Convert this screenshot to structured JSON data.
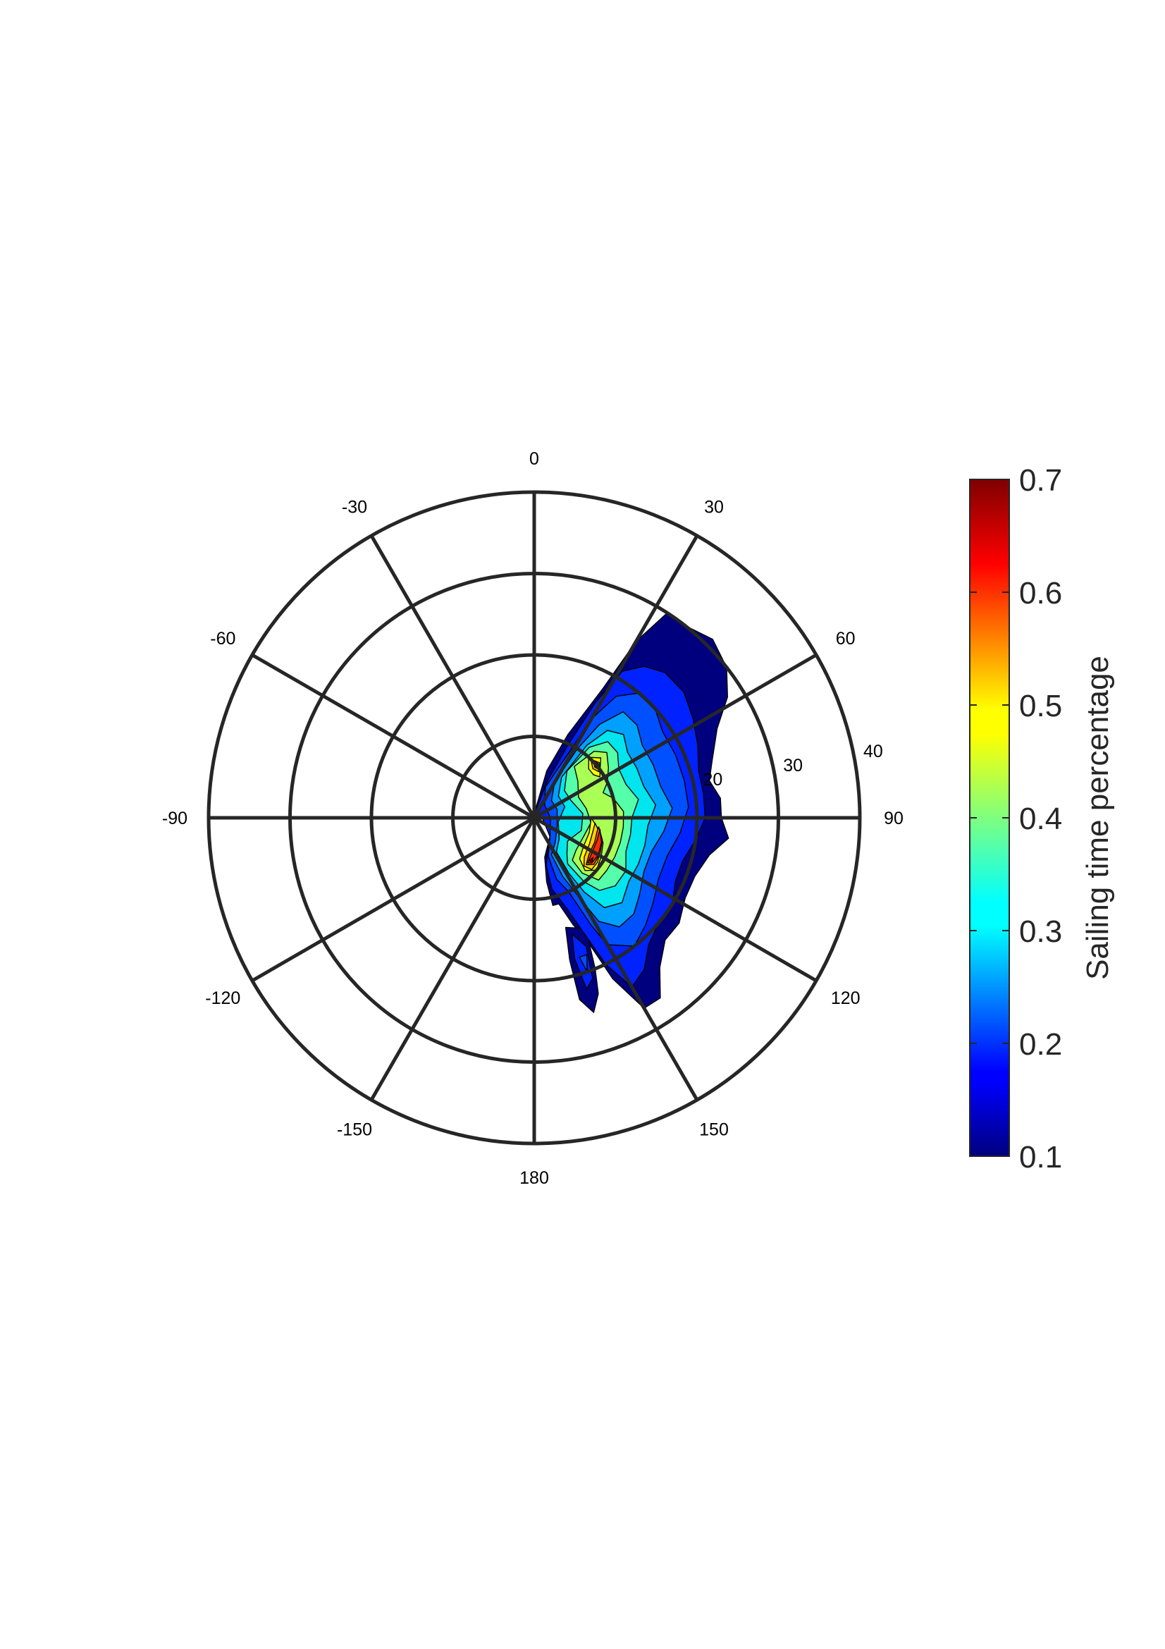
{
  "chart_data": {
    "type": "polar contour",
    "angular_axis": {
      "zero_location": "top",
      "direction": "clockwise",
      "tick_values": [
        0,
        30,
        60,
        90,
        120,
        150,
        180,
        -150,
        -120,
        -90,
        -60,
        -30
      ],
      "tick_labels": [
        "0",
        "30",
        "60",
        "90",
        "120",
        "150",
        "180",
        "-150",
        "-120",
        "-90",
        "-60",
        "-30"
      ]
    },
    "radial_axis": {
      "rlim": [
        0,
        40
      ],
      "rings": [
        10,
        20,
        30,
        40
      ],
      "tick_labels": [
        "20",
        "30",
        "40"
      ],
      "label_angle": 80
    },
    "contour_levels": [
      0.1,
      0.15,
      0.2,
      0.25,
      0.3,
      0.35,
      0.4,
      0.45,
      0.5,
      0.55,
      0.6,
      0.65
    ],
    "contours": [
      {
        "level": 0.1,
        "color": "#00007F",
        "polygon": [
          [
            0,
            0.5
          ],
          [
            15,
            6
          ],
          [
            22,
            11
          ],
          [
            28,
            18
          ],
          [
            30,
            25
          ],
          [
            33,
            30
          ],
          [
            38,
            30
          ],
          [
            45,
            31
          ],
          [
            52,
            30
          ],
          [
            58,
            28
          ],
          [
            64,
            25
          ],
          [
            72,
            23
          ],
          [
            78,
            22
          ],
          [
            84,
            23
          ],
          [
            90,
            23
          ],
          [
            96,
            24
          ],
          [
            102,
            22
          ],
          [
            110,
            21
          ],
          [
            118,
            21
          ],
          [
            126,
            22
          ],
          [
            133,
            22
          ],
          [
            140,
            24
          ],
          [
            145,
            27
          ],
          [
            150,
            27
          ],
          [
            154,
            22
          ],
          [
            157,
            16
          ],
          [
            160,
            14
          ],
          [
            164,
            11
          ],
          [
            168,
            11
          ],
          [
            169,
            8
          ],
          [
            165,
            5
          ],
          [
            140,
            3
          ],
          [
            90,
            1
          ],
          [
            40,
            1
          ]
        ]
      },
      {
        "level": 0.1,
        "color": "#00007F",
        "polygon": [
          [
            155,
            15
          ],
          [
            158,
            20
          ],
          [
            160,
            23
          ],
          [
            163,
            25
          ],
          [
            166,
            23
          ],
          [
            166,
            18
          ],
          [
            164,
            14
          ]
        ]
      },
      {
        "level": 0.15,
        "color": "#0022FF",
        "polygon": [
          [
            0,
            0.5
          ],
          [
            20,
            5
          ],
          [
            25,
            10
          ],
          [
            28,
            16
          ],
          [
            31,
            21
          ],
          [
            36,
            23
          ],
          [
            42,
            24
          ],
          [
            50,
            24
          ],
          [
            58,
            23
          ],
          [
            66,
            22
          ],
          [
            74,
            21
          ],
          [
            82,
            21
          ],
          [
            90,
            21
          ],
          [
            98,
            20
          ],
          [
            106,
            19
          ],
          [
            114,
            19
          ],
          [
            122,
            20
          ],
          [
            130,
            20
          ],
          [
            138,
            21
          ],
          [
            144,
            23
          ],
          [
            150,
            24
          ],
          [
            154,
            20
          ],
          [
            157,
            15
          ],
          [
            160,
            12
          ],
          [
            166,
            9
          ],
          [
            166,
            6
          ],
          [
            140,
            3
          ],
          [
            90,
            1
          ]
        ]
      },
      {
        "level": 0.15,
        "color": "#0022FF",
        "polygon": [
          [
            158,
            17
          ],
          [
            160,
            21
          ],
          [
            163,
            22
          ],
          [
            164,
            18
          ],
          [
            162,
            15
          ]
        ]
      },
      {
        "level": 0.2,
        "color": "#0050FF",
        "polygon": [
          [
            20,
            4
          ],
          [
            28,
            9
          ],
          [
            30,
            14
          ],
          [
            34,
            18
          ],
          [
            40,
            20
          ],
          [
            48,
            20
          ],
          [
            56,
            19
          ],
          [
            66,
            19
          ],
          [
            76,
            19
          ],
          [
            86,
            19
          ],
          [
            96,
            18
          ],
          [
            106,
            17
          ],
          [
            116,
            17
          ],
          [
            126,
            18
          ],
          [
            134,
            19
          ],
          [
            142,
            20
          ],
          [
            150,
            18
          ],
          [
            152,
            15
          ],
          [
            155,
            10
          ],
          [
            160,
            8
          ],
          [
            160,
            5
          ],
          [
            140,
            3
          ],
          [
            90,
            2
          ],
          [
            40,
            2
          ]
        ]
      },
      {
        "level": 0.2,
        "color": "#0050FF",
        "polygon": [
          [
            159,
            18
          ],
          [
            161,
            20
          ],
          [
            162,
            18
          ]
        ]
      },
      {
        "level": 0.25,
        "color": "#00A0FF",
        "polygon": [
          [
            30,
            5
          ],
          [
            32,
            10
          ],
          [
            35,
            14
          ],
          [
            40,
            17
          ],
          [
            48,
            17
          ],
          [
            56,
            16
          ],
          [
            66,
            16
          ],
          [
            76,
            16
          ],
          [
            86,
            17
          ],
          [
            96,
            16
          ],
          [
            106,
            15
          ],
          [
            116,
            15
          ],
          [
            126,
            16
          ],
          [
            134,
            17
          ],
          [
            142,
            17
          ],
          [
            148,
            15
          ],
          [
            150,
            12
          ],
          [
            154,
            8
          ],
          [
            155,
            5
          ],
          [
            140,
            4
          ],
          [
            110,
            3
          ],
          [
            70,
            3
          ],
          [
            45,
            3
          ]
        ]
      },
      {
        "level": 0.3,
        "color": "#00E5EE",
        "polygon": [
          [
            34,
            6
          ],
          [
            36,
            11
          ],
          [
            40,
            14
          ],
          [
            47,
            15
          ],
          [
            55,
            14
          ],
          [
            64,
            14
          ],
          [
            74,
            14
          ],
          [
            84,
            15
          ],
          [
            94,
            14
          ],
          [
            104,
            14
          ],
          [
            114,
            14
          ],
          [
            124,
            14
          ],
          [
            134,
            15
          ],
          [
            142,
            14
          ],
          [
            146,
            11
          ],
          [
            148,
            8
          ],
          [
            147,
            5
          ],
          [
            130,
            4
          ],
          [
            100,
            3
          ],
          [
            70,
            4
          ],
          [
            48,
            4
          ]
        ]
      },
      {
        "level": 0.35,
        "color": "#55FFAA",
        "polygon": [
          [
            35,
            7
          ],
          [
            38,
            11
          ],
          [
            44,
            13
          ],
          [
            52,
            13
          ],
          [
            60,
            12
          ],
          [
            70,
            12
          ],
          [
            80,
            13
          ],
          [
            90,
            12
          ],
          [
            100,
            12
          ],
          [
            110,
            12
          ],
          [
            120,
            13
          ],
          [
            130,
            13
          ],
          [
            138,
            12
          ],
          [
            142,
            10
          ],
          [
            144,
            7
          ],
          [
            138,
            6
          ],
          [
            125,
            5
          ],
          [
            105,
            6
          ],
          [
            85,
            6
          ],
          [
            65,
            5
          ],
          [
            48,
            5
          ]
        ]
      },
      {
        "level": 0.4,
        "color": "#AAFF55",
        "polygon": [
          [
            38,
            8
          ],
          [
            42,
            11
          ],
          [
            48,
            12
          ],
          [
            56,
            11
          ],
          [
            64,
            10
          ],
          [
            70,
            9
          ],
          [
            76,
            10
          ],
          [
            86,
            11
          ],
          [
            96,
            11
          ],
          [
            106,
            11
          ],
          [
            116,
            11
          ],
          [
            126,
            11
          ],
          [
            134,
            11
          ],
          [
            139,
            9
          ],
          [
            138,
            7
          ],
          [
            128,
            6.5
          ],
          [
            110,
            6.5
          ],
          [
            95,
            7
          ],
          [
            80,
            6.5
          ],
          [
            65,
            6
          ],
          [
            50,
            7
          ]
        ]
      },
      {
        "level": 0.45,
        "color": "#FFFF00",
        "polygon": [
          [
            42,
            10
          ],
          [
            48,
            11
          ],
          [
            54,
            10
          ],
          [
            58,
            9.5
          ],
          [
            54,
            9
          ],
          [
            48,
            9
          ]
        ]
      },
      {
        "level": 0.45,
        "color": "#FFFF00",
        "polygon": [
          [
            90,
            7
          ],
          [
            100,
            8
          ],
          [
            110,
            9
          ],
          [
            120,
            9.5
          ],
          [
            130,
            10
          ],
          [
            136,
            9
          ],
          [
            132,
            7.5
          ],
          [
            120,
            7
          ],
          [
            105,
            7
          ]
        ]
      },
      {
        "level": 0.5,
        "color": "#FFCC00",
        "polygon": [
          [
            44,
            10
          ],
          [
            50,
            10.5
          ],
          [
            55,
            9.8
          ],
          [
            50,
            9.4
          ]
        ]
      },
      {
        "level": 0.5,
        "color": "#FFCC00",
        "polygon": [
          [
            95,
            7.5
          ],
          [
            105,
            8.5
          ],
          [
            115,
            9
          ],
          [
            125,
            9.5
          ],
          [
            132,
            9.5
          ],
          [
            134,
            8.5
          ],
          [
            128,
            7.8
          ],
          [
            115,
            7.5
          ],
          [
            102,
            7.4
          ]
        ]
      },
      {
        "level": 0.55,
        "color": "#FF6A00",
        "polygon": [
          [
            98,
            8
          ],
          [
            108,
            8.8
          ],
          [
            118,
            9.2
          ],
          [
            128,
            9.3
          ],
          [
            132,
            8.6
          ],
          [
            124,
            8.1
          ],
          [
            112,
            8
          ],
          [
            102,
            7.9
          ]
        ]
      },
      {
        "level": 0.6,
        "color": "#FF2A00",
        "polygon": [
          [
            100,
            8.2
          ],
          [
            110,
            8.8
          ],
          [
            120,
            9.1
          ],
          [
            128,
            9
          ],
          [
            130,
            8.6
          ],
          [
            122,
            8.3
          ],
          [
            110,
            8.2
          ]
        ]
      },
      {
        "level": 0.6,
        "color": "#FF2A00",
        "polygon": [
          [
            46,
            10.1
          ],
          [
            50,
            10.3
          ],
          [
            53,
            9.9
          ],
          [
            50,
            9.7
          ]
        ]
      },
      {
        "level": 0.65,
        "color": "#E00000",
        "polygon": [
          [
            124,
            8.7
          ],
          [
            127,
            8.9
          ],
          [
            128,
            8.6
          ]
        ]
      }
    ],
    "colorbar": {
      "colormap": "jet",
      "range": [
        0.1,
        0.7
      ],
      "ticks": [
        0.1,
        0.2,
        0.3,
        0.4,
        0.5,
        0.6,
        0.7
      ],
      "tick_labels": [
        "0.1",
        "0.2",
        "0.3",
        "0.4",
        "0.5",
        "0.6",
        "0.7"
      ],
      "label": "Sailing time percentage"
    }
  }
}
